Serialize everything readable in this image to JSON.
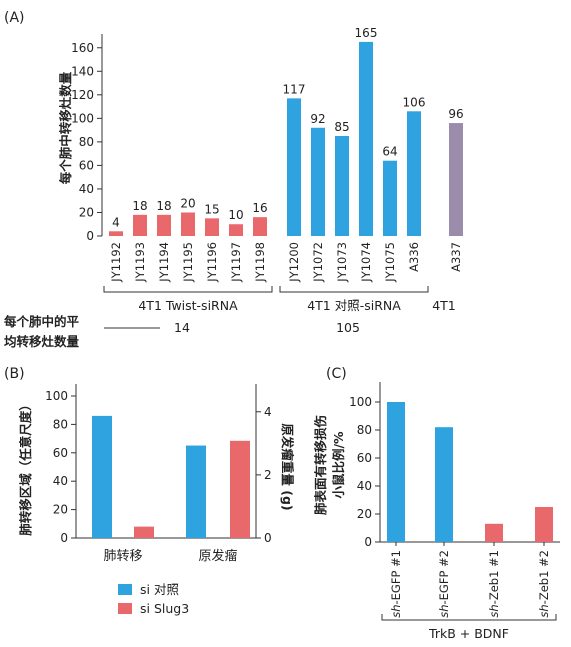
{
  "panel_labels": {
    "a": "(A)",
    "b": "(B)",
    "c": "(C)"
  },
  "colors": {
    "pink": "#e8686c",
    "blue": "#2ea3df",
    "purple": "#9b8cab",
    "axis": "#333333"
  },
  "chart_data": [
    {
      "id": "A",
      "type": "bar",
      "ylabel": "每个肺中转移灶数量",
      "ylim": [
        0,
        170
      ],
      "yticks": [
        0,
        20,
        40,
        60,
        80,
        100,
        120,
        140,
        160
      ],
      "categories": [
        "JY1192",
        "JY1193",
        "JY1194",
        "JY1195",
        "JY1196",
        "JY1197",
        "JY1198",
        "JY1200",
        "JY1072",
        "JY1073",
        "JY1074",
        "JY1075",
        "A336",
        "A337"
      ],
      "values": [
        4,
        18,
        18,
        20,
        15,
        10,
        16,
        117,
        92,
        85,
        165,
        64,
        106,
        96
      ],
      "bar_colors": [
        "pink",
        "pink",
        "pink",
        "pink",
        "pink",
        "pink",
        "pink",
        "blue",
        "blue",
        "blue",
        "blue",
        "blue",
        "blue",
        "purple"
      ],
      "groups": [
        {
          "label": "4T1 Twist-siRNA",
          "average": "14"
        },
        {
          "label": "4T1 对照-siRNA",
          "average": "105"
        },
        {
          "label": "4T1",
          "average": ""
        }
      ],
      "average_row_label": [
        "每个肺中的平",
        "均转移灶数量"
      ]
    },
    {
      "id": "B",
      "type": "bar",
      "ylabel_left": "肺转移区域（任意尺度）",
      "ylabel_right": "原发瘤重量 (g)",
      "ylim_left": [
        0,
        100
      ],
      "yticks_left": [
        0,
        20,
        40,
        60,
        80,
        100
      ],
      "ylim_right": [
        0,
        4.5
      ],
      "yticks_right": [
        0,
        2,
        4
      ],
      "categories": [
        "肺转移",
        "原发瘤"
      ],
      "axis_for_category": [
        "left",
        "right"
      ],
      "series": [
        {
          "name": "si 对照",
          "color": "blue",
          "values": [
            86,
            2.93
          ]
        },
        {
          "name": "si Slug3",
          "color": "pink",
          "values": [
            8,
            3.08
          ]
        }
      ]
    },
    {
      "id": "C",
      "type": "bar",
      "ylabel": [
        "肺表面有转移损伤",
        "小鼠比例/%"
      ],
      "ylim": [
        0,
        110
      ],
      "yticks": [
        0,
        20,
        40,
        60,
        80,
        100
      ],
      "categories": [
        {
          "it": "sh",
          "rest": "-EGFP #1"
        },
        {
          "it": "sh",
          "rest": "-EGFP #2"
        },
        {
          "it": "sh",
          "rest": "-Zeb1 #1"
        },
        {
          "it": "sh",
          "rest": "-Zeb1 #2"
        }
      ],
      "values": [
        100,
        82,
        13,
        25
      ],
      "bar_colors": [
        "blue",
        "blue",
        "pink",
        "pink"
      ],
      "group_label": "TrkB + BDNF"
    }
  ]
}
